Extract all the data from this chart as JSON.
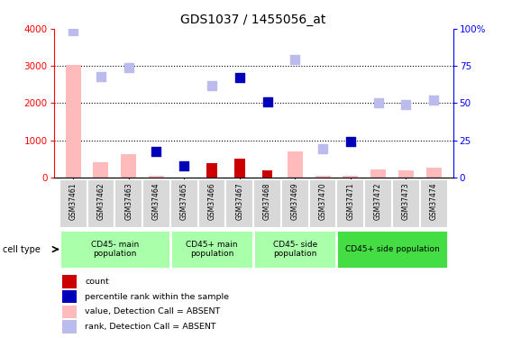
{
  "title": "GDS1037 / 1455056_at",
  "samples": [
    "GSM37461",
    "GSM37462",
    "GSM37463",
    "GSM37464",
    "GSM37465",
    "GSM37466",
    "GSM37467",
    "GSM37468",
    "GSM37469",
    "GSM37470",
    "GSM37471",
    "GSM37472",
    "GSM37473",
    "GSM37474"
  ],
  "count_values": [
    null,
    null,
    null,
    null,
    null,
    380,
    500,
    200,
    null,
    null,
    null,
    null,
    null,
    null
  ],
  "rank_values": [
    null,
    null,
    null,
    700,
    320,
    null,
    2700,
    2030,
    null,
    null,
    970,
    null,
    null,
    null
  ],
  "absent_value": [
    3020,
    420,
    620,
    50,
    null,
    null,
    null,
    null,
    700,
    50,
    50,
    220,
    200,
    260
  ],
  "absent_rank": [
    3950,
    2720,
    2960,
    null,
    null,
    2460,
    null,
    null,
    3170,
    780,
    null,
    2020,
    1960,
    2080
  ],
  "ylim_left": [
    0,
    4000
  ],
  "ylim_right": [
    0,
    100
  ],
  "yticks_left": [
    0,
    1000,
    2000,
    3000,
    4000
  ],
  "yticks_right": [
    0,
    25,
    50,
    75,
    100
  ],
  "ytick_labels_right": [
    "0",
    "25",
    "50",
    "75",
    "100%"
  ],
  "group_spans": [
    {
      "start": 0,
      "end": 3,
      "label": "CD45- main\npopulation",
      "color": "#aaffaa"
    },
    {
      "start": 4,
      "end": 6,
      "label": "CD45+ main\npopulation",
      "color": "#aaffaa"
    },
    {
      "start": 7,
      "end": 9,
      "label": "CD45- side\npopulation",
      "color": "#aaffaa"
    },
    {
      "start": 10,
      "end": 13,
      "label": "CD45+ side population",
      "color": "#44dd44"
    }
  ],
  "color_count": "#cc0000",
  "color_rank": "#0000bb",
  "color_absent_value": "#ffbbbb",
  "color_absent_rank": "#bbbbee",
  "legend_labels": [
    "count",
    "percentile rank within the sample",
    "value, Detection Call = ABSENT",
    "rank, Detection Call = ABSENT"
  ],
  "legend_colors": [
    "#cc0000",
    "#0000bb",
    "#ffbbbb",
    "#bbbbee"
  ]
}
